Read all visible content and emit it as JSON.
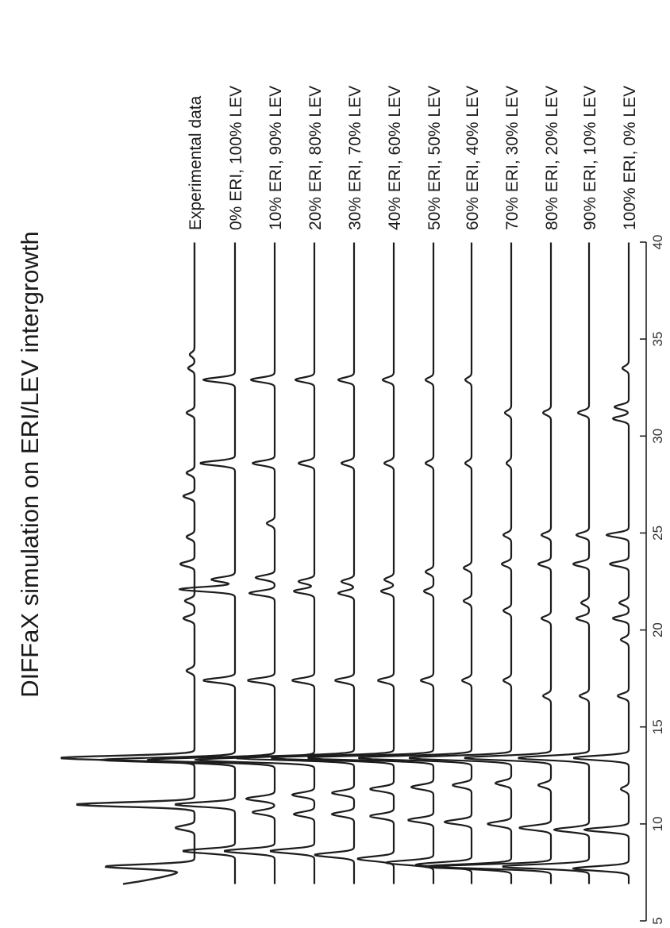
{
  "chart_data": {
    "type": "line",
    "orientation": "rotated 90 degrees counter-clockwise",
    "title": "DIFFaX simulation on ERI/LEV intergrowth",
    "xlabel": "",
    "ylabel": "",
    "xlim": [
      5,
      40
    ],
    "xticks": [
      5,
      10,
      15,
      20,
      25,
      30,
      35,
      40
    ],
    "grid": false,
    "legend": "labels to the right of each trace",
    "series": [
      {
        "name": "Experimental data",
        "peaks": [
          [
            7.8,
            0.55
          ],
          [
            9.8,
            0.12
          ],
          [
            11.0,
            0.75
          ],
          [
            13.4,
            0.85
          ],
          [
            17.9,
            0.05
          ],
          [
            20.6,
            0.07
          ],
          [
            21.5,
            0.06
          ],
          [
            23.4,
            0.09
          ],
          [
            24.8,
            0.05
          ],
          [
            26.9,
            0.07
          ],
          [
            28.1,
            0.05
          ],
          [
            31.2,
            0.05
          ],
          [
            33.5,
            0.04
          ],
          [
            34.2,
            0.03
          ]
        ],
        "baseline_start": 0.45
      },
      {
        "name": "0% ERI, 100% LEV",
        "peaks": [
          [
            8.6,
            0.33
          ],
          [
            11.0,
            0.38
          ],
          [
            13.3,
            0.85
          ],
          [
            17.4,
            0.2
          ],
          [
            22.1,
            0.35
          ],
          [
            22.6,
            0.15
          ],
          [
            28.6,
            0.22
          ],
          [
            32.9,
            0.2
          ]
        ]
      },
      {
        "name": "10% ERI, 90% LEV",
        "peaks": [
          [
            8.6,
            0.32
          ],
          [
            10.6,
            0.14
          ],
          [
            11.3,
            0.18
          ],
          [
            13.3,
            0.8
          ],
          [
            17.4,
            0.17
          ],
          [
            21.9,
            0.16
          ],
          [
            22.7,
            0.12
          ],
          [
            25.5,
            0.05
          ],
          [
            28.6,
            0.14
          ],
          [
            32.9,
            0.15
          ]
        ]
      },
      {
        "name": "20% ERI, 80% LEV",
        "peaks": [
          [
            8.6,
            0.28
          ],
          [
            10.5,
            0.13
          ],
          [
            11.5,
            0.14
          ],
          [
            13.3,
            0.75
          ],
          [
            17.4,
            0.14
          ],
          [
            22.0,
            0.13
          ],
          [
            22.5,
            0.1
          ],
          [
            28.6,
            0.1
          ],
          [
            32.9,
            0.12
          ]
        ]
      },
      {
        "name": "30% ERI, 70% LEV",
        "peaks": [
          [
            8.4,
            0.25
          ],
          [
            10.5,
            0.14
          ],
          [
            11.6,
            0.14
          ],
          [
            13.4,
            0.75
          ],
          [
            17.4,
            0.12
          ],
          [
            21.9,
            0.1
          ],
          [
            22.5,
            0.08
          ],
          [
            28.6,
            0.08
          ],
          [
            32.9,
            0.1
          ]
        ]
      },
      {
        "name": "40% ERI, 60% LEV",
        "peaks": [
          [
            8.2,
            0.23
          ],
          [
            10.4,
            0.15
          ],
          [
            11.8,
            0.15
          ],
          [
            13.4,
            0.78
          ],
          [
            17.4,
            0.1
          ],
          [
            22.0,
            0.08
          ],
          [
            22.6,
            0.06
          ],
          [
            28.6,
            0.06
          ],
          [
            32.9,
            0.07
          ]
        ]
      },
      {
        "name": "50% ERI, 50% LEV",
        "peaks": [
          [
            8.0,
            0.3
          ],
          [
            10.2,
            0.16
          ],
          [
            11.9,
            0.14
          ],
          [
            13.4,
            0.8
          ],
          [
            17.4,
            0.08
          ],
          [
            22.0,
            0.06
          ],
          [
            23.0,
            0.05
          ],
          [
            28.6,
            0.05
          ],
          [
            32.9,
            0.05
          ]
        ]
      },
      {
        "name": "60% ERI, 40% LEV",
        "peaks": [
          [
            7.9,
            0.35
          ],
          [
            10.1,
            0.17
          ],
          [
            12.0,
            0.12
          ],
          [
            13.4,
            0.72
          ],
          [
            17.4,
            0.06
          ],
          [
            21.5,
            0.05
          ],
          [
            23.2,
            0.05
          ],
          [
            28.6,
            0.04
          ],
          [
            32.9,
            0.04
          ]
        ]
      },
      {
        "name": "70% ERI, 30% LEV",
        "peaks": [
          [
            7.8,
            0.55
          ],
          [
            10.0,
            0.15
          ],
          [
            12.1,
            0.1
          ],
          [
            13.4,
            0.65
          ],
          [
            17.4,
            0.05
          ],
          [
            21.0,
            0.05
          ],
          [
            23.4,
            0.06
          ],
          [
            24.9,
            0.05
          ],
          [
            28.6,
            0.03
          ],
          [
            31.2,
            0.04
          ]
        ]
      },
      {
        "name": "80% ERI, 20% LEV",
        "peaks": [
          [
            7.8,
            0.7
          ],
          [
            9.8,
            0.2
          ],
          [
            12.0,
            0.08
          ],
          [
            13.4,
            0.55
          ],
          [
            16.6,
            0.05
          ],
          [
            20.6,
            0.06
          ],
          [
            23.4,
            0.08
          ],
          [
            24.9,
            0.06
          ],
          [
            31.2,
            0.05
          ]
        ]
      },
      {
        "name": "90% ERI, 10% LEV",
        "peaks": [
          [
            7.8,
            0.55
          ],
          [
            9.7,
            0.22
          ],
          [
            13.4,
            0.45
          ],
          [
            16.6,
            0.06
          ],
          [
            20.6,
            0.08
          ],
          [
            21.4,
            0.05
          ],
          [
            23.4,
            0.1
          ],
          [
            24.9,
            0.08
          ],
          [
            31.2,
            0.07
          ]
        ]
      },
      {
        "name": "100% ERI, 0% LEV",
        "peaks": [
          [
            7.7,
            0.35
          ],
          [
            9.7,
            0.28
          ],
          [
            11.8,
            0.05
          ],
          [
            13.4,
            0.35
          ],
          [
            16.6,
            0.07
          ],
          [
            19.5,
            0.05
          ],
          [
            20.6,
            0.1
          ],
          [
            21.4,
            0.06
          ],
          [
            23.4,
            0.12
          ],
          [
            24.9,
            0.14
          ],
          [
            30.9,
            0.1
          ],
          [
            31.5,
            0.09
          ],
          [
            33.5,
            0.04
          ]
        ]
      }
    ]
  }
}
